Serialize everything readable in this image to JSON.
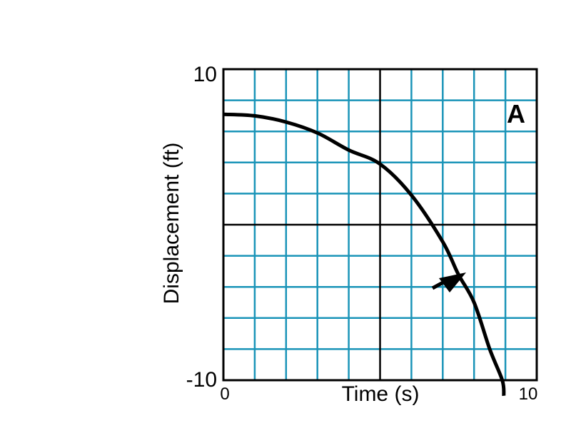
{
  "chart_data": {
    "type": "line",
    "title": "",
    "xlabel": "Time (s)",
    "ylabel": "Displacement (ft)",
    "xlim": [
      0,
      10
    ],
    "ylim": [
      -10,
      10
    ],
    "x_tick_labels": [
      "0",
      "10"
    ],
    "y_tick_labels": [
      "10",
      "-10"
    ],
    "grid": true,
    "grid_divisions_x": 10,
    "grid_divisions_y": 10,
    "annotation": "A",
    "arrow_direction": "up-right",
    "series": [
      {
        "x": [
          0,
          1,
          2,
          3,
          4,
          5,
          6,
          7,
          7.5,
          8,
          8.5,
          8.9,
          8.95
        ],
        "y": [
          7.1,
          7.0,
          6.6,
          5.9,
          4.8,
          3.9,
          1.9,
          -1.1,
          -3.2,
          -5.0,
          -8.0,
          -10.0,
          -11.0
        ]
      }
    ],
    "colors": {
      "grid": "#1a94b8",
      "axes": "#000000",
      "curve": "#000000"
    }
  }
}
